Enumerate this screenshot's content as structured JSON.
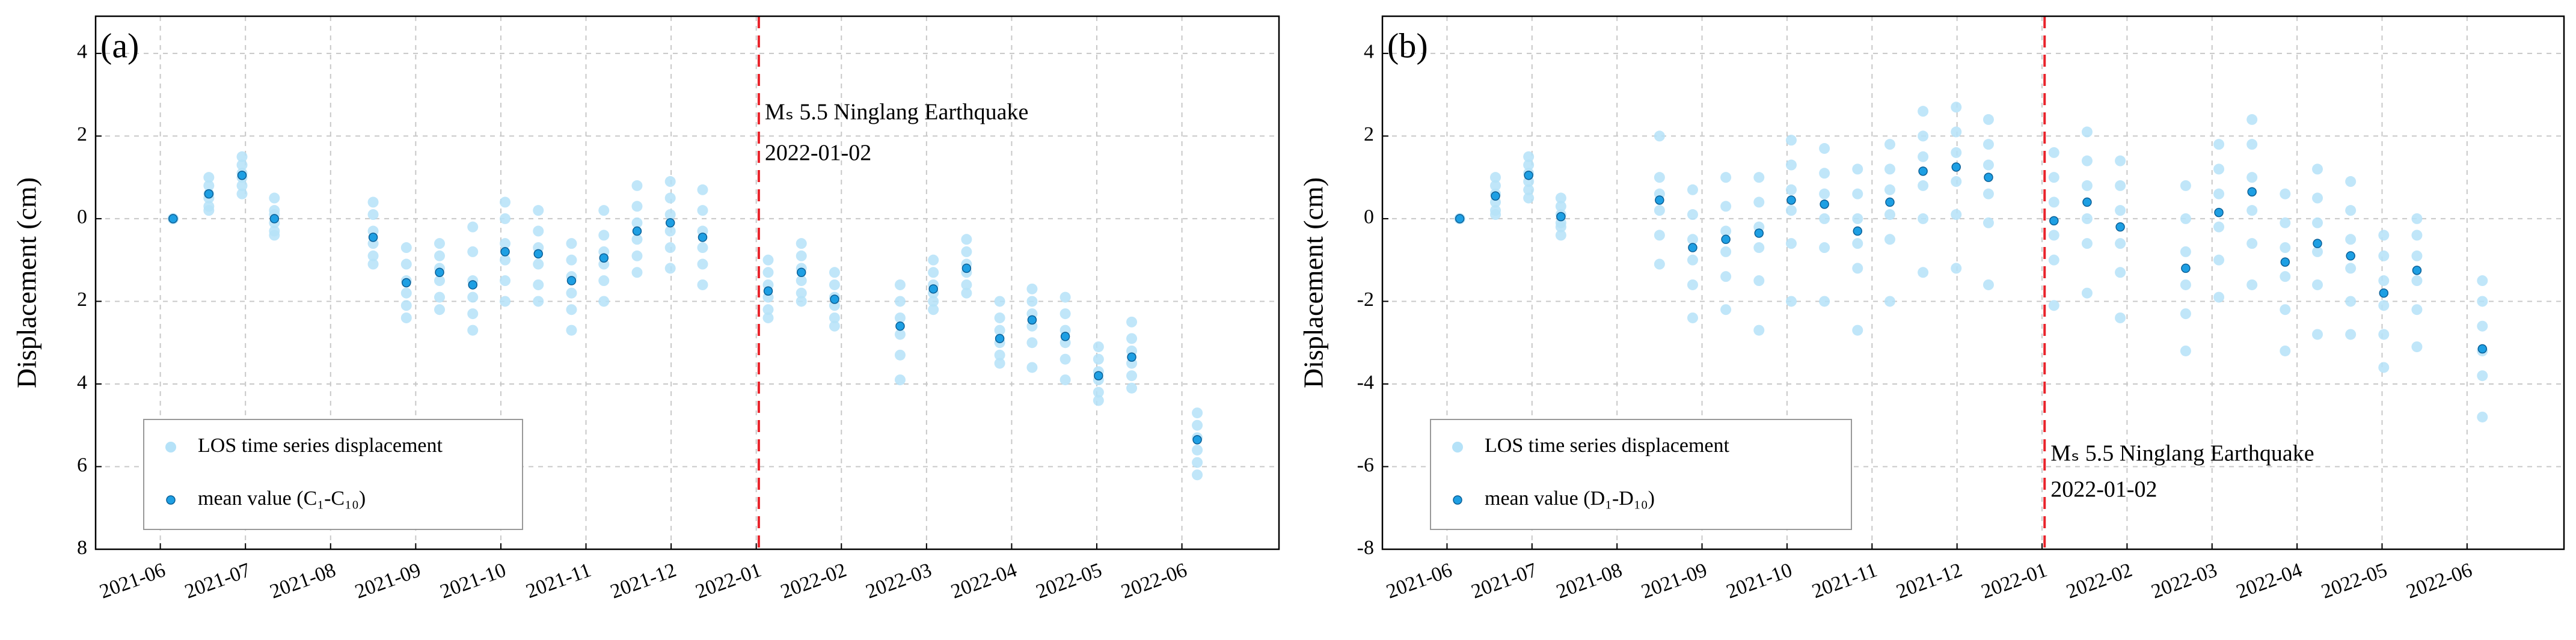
{
  "chart_data": [
    {
      "type": "scatter",
      "label": "(a)",
      "ylabel": "Displacement (cm)",
      "x": [
        0.15,
        0.57,
        0.96,
        1.34,
        2.5,
        2.89,
        3.28,
        3.67,
        4.05,
        4.44,
        4.83,
        5.21,
        5.6,
        5.99,
        6.37,
        7.14,
        7.53,
        7.92,
        8.69,
        9.08,
        9.47,
        9.86,
        10.24,
        10.63,
        11.02,
        11.41,
        12.18
      ],
      "xlim": [
        -0.76,
        13.14
      ],
      "xticks": [
        {
          "value": 0,
          "label": "2021-06"
        },
        {
          "value": 1,
          "label": "2021-07"
        },
        {
          "value": 2,
          "label": "2021-08"
        },
        {
          "value": 3,
          "label": "2021-09"
        },
        {
          "value": 4,
          "label": "2021-10"
        },
        {
          "value": 5,
          "label": "2021-11"
        },
        {
          "value": 6,
          "label": "2021-12"
        },
        {
          "value": 7,
          "label": "2022-01"
        },
        {
          "value": 8,
          "label": "2022-02"
        },
        {
          "value": 9,
          "label": "2022-03"
        },
        {
          "value": 10,
          "label": "2022-04"
        },
        {
          "value": 11,
          "label": "2022-05"
        },
        {
          "value": 12,
          "label": "2022-06"
        }
      ],
      "ylim": [
        -8,
        4.9
      ],
      "yticks": [
        4,
        2,
        0,
        {
          "value": -2,
          "label": "2"
        },
        {
          "value": -4,
          "label": "4"
        },
        {
          "value": -6,
          "label": "6"
        },
        {
          "value": -8,
          "label": "8"
        }
      ],
      "grid": true,
      "legend": "lower left",
      "series": [
        {
          "name": "LOS time series displacement",
          "color": "#b5e2f8",
          "values": [
            [
              0,
              0,
              0,
              0,
              0,
              0
            ],
            [
              1.0,
              0.8,
              0.6,
              0.5,
              0.3,
              0.2
            ],
            [
              1.5,
              1.3,
              1.1,
              1.0,
              0.8,
              0.6
            ],
            [
              0.5,
              0.2,
              0.1,
              -0.1,
              -0.3,
              -0.4
            ],
            [
              0.4,
              0.1,
              -0.3,
              -0.6,
              -0.9,
              -1.1
            ],
            [
              -0.7,
              -1.1,
              -1.5,
              -1.8,
              -2.1,
              -2.4
            ],
            [
              -0.6,
              -0.9,
              -1.2,
              -1.5,
              -1.9,
              -2.2
            ],
            [
              -0.2,
              -0.8,
              -1.5,
              -1.9,
              -2.3,
              -2.7
            ],
            [
              0.4,
              0.0,
              -0.6,
              -1.0,
              -1.5,
              -2.0
            ],
            [
              0.2,
              -0.3,
              -0.7,
              -1.1,
              -1.6,
              -2.0
            ],
            [
              -0.6,
              -1.0,
              -1.4,
              -1.8,
              -2.2,
              -2.7
            ],
            [
              0.2,
              -0.4,
              -0.8,
              -1.1,
              -1.5,
              -2.0
            ],
            [
              0.8,
              0.3,
              -0.1,
              -0.5,
              -0.9,
              -1.3
            ],
            [
              0.9,
              0.5,
              0.1,
              -0.3,
              -0.7,
              -1.2
            ],
            [
              0.7,
              0.2,
              -0.3,
              -0.7,
              -1.1,
              -1.6
            ],
            [
              -1.0,
              -1.3,
              -1.6,
              -1.9,
              -2.2,
              -2.4
            ],
            [
              -0.6,
              -0.9,
              -1.2,
              -1.5,
              -1.8,
              -2.0
            ],
            [
              -1.3,
              -1.6,
              -1.9,
              -2.1,
              -2.4,
              -2.6
            ],
            [
              -1.6,
              -2.0,
              -2.4,
              -2.8,
              -3.3,
              -3.9
            ],
            [
              -1.0,
              -1.3,
              -1.6,
              -1.8,
              -2.0,
              -2.2
            ],
            [
              -0.5,
              -0.8,
              -1.1,
              -1.3,
              -1.6,
              -1.8
            ],
            [
              -2.0,
              -2.4,
              -2.7,
              -3.0,
              -3.3,
              -3.5
            ],
            [
              -1.7,
              -2.0,
              -2.3,
              -2.6,
              -3.0,
              -3.6
            ],
            [
              -1.9,
              -2.3,
              -2.7,
              -3.0,
              -3.4,
              -3.9
            ],
            [
              -3.1,
              -3.4,
              -3.7,
              -3.9,
              -4.2,
              -4.4
            ],
            [
              -2.5,
              -2.9,
              -3.2,
              -3.5,
              -3.8,
              -4.1
            ],
            [
              -4.7,
              -5.0,
              -5.3,
              -5.6,
              -5.9,
              -6.2
            ]
          ]
        },
        {
          "name": "mean value (C₁-C₁₀)",
          "color": "#1e9fe3",
          "values": [
            0,
            0.6,
            1.05,
            0.0,
            -0.45,
            -1.55,
            -1.3,
            -1.6,
            -0.8,
            -0.85,
            -1.5,
            -0.95,
            -0.3,
            -0.1,
            -0.45,
            -1.75,
            -1.3,
            -1.95,
            -2.6,
            -1.7,
            -1.2,
            -2.9,
            -2.45,
            -2.85,
            -3.8,
            -3.35,
            -5.35
          ]
        }
      ],
      "annotation": {
        "text": [
          "Mₛ 5.5 Ninglang Earthquake",
          "2022-01-02"
        ],
        "x": 7.03,
        "color": "#e8242c"
      }
    },
    {
      "type": "scatter",
      "label": "(b)",
      "ylabel": "Displacement (cm)",
      "x": [
        0.15,
        0.57,
        0.96,
        1.34,
        2.5,
        2.89,
        3.28,
        3.67,
        4.05,
        4.44,
        4.83,
        5.21,
        5.6,
        5.99,
        6.37,
        7.14,
        7.53,
        7.92,
        8.69,
        9.08,
        9.47,
        9.86,
        10.24,
        10.63,
        11.02,
        11.41,
        12.18
      ],
      "xlim": [
        -0.76,
        13.14
      ],
      "xticks": [
        {
          "value": 0,
          "label": "2021-06"
        },
        {
          "value": 1,
          "label": "2021-07"
        },
        {
          "value": 2,
          "label": "2021-08"
        },
        {
          "value": 3,
          "label": "2021-09"
        },
        {
          "value": 4,
          "label": "2021-10"
        },
        {
          "value": 5,
          "label": "2021-11"
        },
        {
          "value": 6,
          "label": "2021-12"
        },
        {
          "value": 7,
          "label": "2022-01"
        },
        {
          "value": 8,
          "label": "2022-02"
        },
        {
          "value": 9,
          "label": "2022-03"
        },
        {
          "value": 10,
          "label": "2022-04"
        },
        {
          "value": 11,
          "label": "2022-05"
        },
        {
          "value": 12,
          "label": "2022-06"
        }
      ],
      "ylim": [
        -8,
        4.9
      ],
      "yticks": [
        4,
        2,
        0,
        -2,
        -4,
        -6,
        -8
      ],
      "grid": true,
      "legend": "lower left",
      "series": [
        {
          "name": "LOS time series displacement",
          "color": "#b5e2f8",
          "values": [
            [
              0,
              0,
              0,
              0,
              0,
              0
            ],
            [
              1.0,
              0.8,
              0.6,
              0.4,
              0.2,
              0.1
            ],
            [
              1.5,
              1.3,
              1.1,
              0.9,
              0.7,
              0.5
            ],
            [
              0.5,
              0.3,
              0.1,
              -0.1,
              -0.2,
              -0.4
            ],
            [
              2.0,
              1.0,
              0.6,
              0.2,
              -0.4,
              -1.1
            ],
            [
              0.7,
              0.1,
              -0.5,
              -1.0,
              -1.6,
              -2.4
            ],
            [
              1.0,
              0.3,
              -0.3,
              -0.8,
              -1.4,
              -2.2
            ],
            [
              1.0,
              0.4,
              -0.2,
              -0.7,
              -1.5,
              -2.7
            ],
            [
              1.9,
              1.3,
              0.7,
              0.2,
              -0.6,
              -2.0
            ],
            [
              1.7,
              1.1,
              0.6,
              0.0,
              -0.7,
              -2.0
            ],
            [
              1.2,
              0.6,
              0.0,
              -0.6,
              -1.2,
              -2.7
            ],
            [
              1.8,
              1.2,
              0.7,
              0.1,
              -0.5,
              -2.0
            ],
            [
              2.6,
              2.0,
              1.5,
              0.8,
              0.0,
              -1.3
            ],
            [
              2.7,
              2.1,
              1.6,
              0.9,
              0.1,
              -1.2
            ],
            [
              2.4,
              1.8,
              1.3,
              0.6,
              -0.1,
              -1.6
            ],
            [
              1.6,
              1.0,
              0.4,
              -0.4,
              -1.0,
              -2.1
            ],
            [
              2.1,
              1.4,
              0.8,
              0.0,
              -0.6,
              -1.8
            ],
            [
              1.4,
              0.8,
              0.2,
              -0.6,
              -1.3,
              -2.4
            ],
            [
              0.8,
              0.0,
              -0.8,
              -1.6,
              -2.3,
              -3.2
            ],
            [
              1.8,
              1.2,
              0.6,
              -0.2,
              -1.0,
              -1.9
            ],
            [
              2.4,
              1.8,
              1.0,
              0.2,
              -0.6,
              -1.6
            ],
            [
              0.6,
              -0.1,
              -0.7,
              -1.4,
              -2.2,
              -3.2
            ],
            [
              1.2,
              0.5,
              -0.1,
              -0.8,
              -1.6,
              -2.8
            ],
            [
              0.9,
              0.2,
              -0.5,
              -1.2,
              -2.0,
              -2.8
            ],
            [
              -0.4,
              -0.9,
              -1.5,
              -2.1,
              -2.8,
              -3.6
            ],
            [
              0.0,
              -0.4,
              -0.9,
              -1.5,
              -2.2,
              -3.1
            ],
            [
              -1.5,
              -2.0,
              -2.6,
              -3.2,
              -3.8,
              -4.8
            ]
          ]
        },
        {
          "name": "mean value (D₁-D₁₀)",
          "color": "#1e9fe3",
          "values": [
            0,
            0.55,
            1.05,
            0.05,
            0.45,
            -0.7,
            -0.5,
            -0.35,
            0.45,
            0.35,
            -0.3,
            0.4,
            1.15,
            1.25,
            1.0,
            -0.05,
            0.4,
            -0.2,
            -1.2,
            0.15,
            0.65,
            -1.05,
            -0.6,
            -0.9,
            -1.8,
            -1.25,
            -3.15
          ]
        }
      ],
      "annotation": {
        "text": [
          "Mₛ 5.5 Ninglang Earthquake",
          "2022-01-02"
        ],
        "x": 7.03,
        "color": "#e8242c"
      }
    }
  ]
}
